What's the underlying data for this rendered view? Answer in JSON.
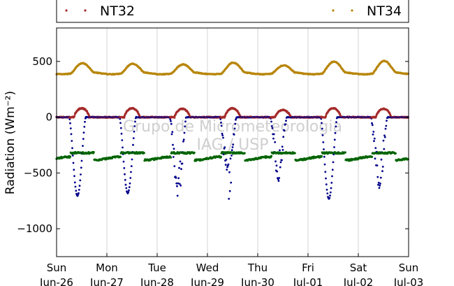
{
  "chart_data": {
    "type": "scatter",
    "ylabel": "Radiation (Wm⁻²)",
    "watermark": [
      "Grupo de Micrometeorologia",
      "IAG / USP"
    ],
    "ylim": [
      -1250,
      800
    ],
    "yticks": [
      500,
      0,
      -500,
      -1000
    ],
    "ytick_labels": [
      "500",
      "0",
      "−500",
      "−1000"
    ],
    "xlim": [
      0,
      7
    ],
    "xticks": [
      {
        "day": 0,
        "weekday": "Sun",
        "date": "Jun-26"
      },
      {
        "day": 1,
        "weekday": "Mon",
        "date": "Jun-27"
      },
      {
        "day": 2,
        "weekday": "Tue",
        "date": "Jun-28"
      },
      {
        "day": 3,
        "weekday": "Wed",
        "date": "Jun-29"
      },
      {
        "day": 4,
        "weekday": "Thu",
        "date": "Jun-30"
      },
      {
        "day": 5,
        "weekday": "Fri",
        "date": "Jul-01"
      },
      {
        "day": 6,
        "weekday": "Sat",
        "date": "Jul-02"
      },
      {
        "day": 7,
        "weekday": "Sun",
        "date": "Jul-03"
      }
    ],
    "grid": "vertical",
    "legend": {
      "placement": "top",
      "entries": [
        "NT32",
        "NT34"
      ]
    },
    "series": [
      {
        "name": "NT34",
        "color": "#b8860b",
        "baseline": 395,
        "daily_peak": [
          475,
          470,
          465,
          480,
          455,
          490,
          495
        ],
        "min_value": 375,
        "max_value": 495
      },
      {
        "name": "NT32",
        "color": "#a52a2a",
        "baseline": 0,
        "daily_peak": [
          80,
          80,
          75,
          80,
          65,
          80,
          75
        ],
        "min_value": -10,
        "max_value": 90
      },
      {
        "color": "#006400",
        "baseline": -370,
        "daytime_level": -320,
        "min_value": -450,
        "max_value": -300
      },
      {
        "color": "#00008b",
        "baseline": 0,
        "daily_minimum": [
          -705,
          -680,
          -740,
          -720,
          -560,
          -730,
          -680
        ],
        "min_value": -740,
        "max_value": 0
      }
    ]
  }
}
